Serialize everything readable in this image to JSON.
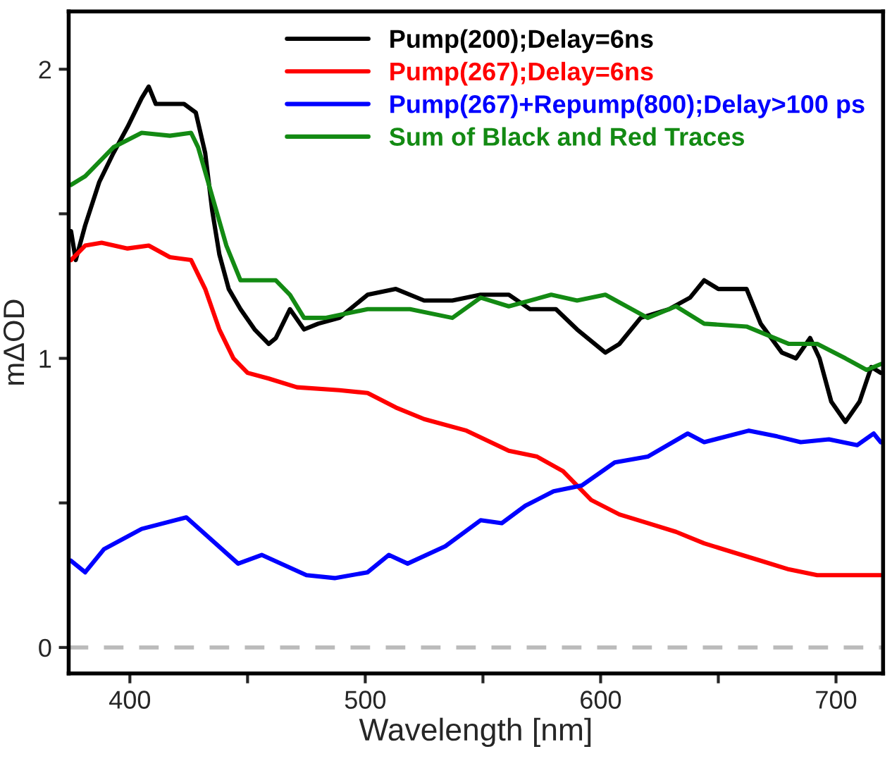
{
  "chart_data": {
    "type": "line",
    "xlabel": "Wavelength [nm]",
    "ylabel": "mΔOD",
    "xlim": [
      374,
      720
    ],
    "ylim": [
      -0.09,
      2.2
    ],
    "xticks": [
      400,
      {
        "value": 450,
        "label": null
      },
      500,
      {
        "value": 550,
        "label": null
      },
      600,
      {
        "value": 650,
        "label": null
      },
      700
    ],
    "yticks": [
      0,
      {
        "value": 0.5,
        "label": null
      },
      1,
      {
        "value": 1.5,
        "label": null
      },
      2
    ],
    "grid": false,
    "legend": "top right",
    "marker": "none",
    "line_style": "solid",
    "ref_lines": [
      {
        "axis": "y",
        "value": 0,
        "color": "#bbbbbb",
        "line_style": "dashed"
      }
    ],
    "series": [
      {
        "name": "Pump(200);Delay=6ns",
        "color": "#000000",
        "x": [
          375,
          377,
          381,
          387,
          393,
          399,
          405,
          408,
          411,
          417,
          423,
          428,
          432,
          435,
          438,
          442,
          447,
          453,
          459,
          462,
          468,
          474,
          480,
          489,
          501,
          513,
          525,
          537,
          549,
          561,
          570,
          581,
          590,
          602,
          608,
          617,
          629,
          638,
          644,
          650,
          656,
          662,
          668,
          677,
          683,
          689,
          693,
          698,
          704,
          710,
          715,
          719
        ],
        "values": [
          1.44,
          1.34,
          1.46,
          1.61,
          1.71,
          1.8,
          1.9,
          1.94,
          1.88,
          1.88,
          1.88,
          1.85,
          1.71,
          1.51,
          1.36,
          1.24,
          1.17,
          1.1,
          1.05,
          1.07,
          1.17,
          1.1,
          1.12,
          1.14,
          1.22,
          1.24,
          1.2,
          1.2,
          1.22,
          1.22,
          1.17,
          1.17,
          1.1,
          1.02,
          1.05,
          1.14,
          1.17,
          1.21,
          1.27,
          1.24,
          1.24,
          1.24,
          1.12,
          1.02,
          1.0,
          1.07,
          1.0,
          0.85,
          0.78,
          0.85,
          0.97,
          0.95
        ]
      },
      {
        "name": "Pump(267);Delay=6ns",
        "color": "#ff0000",
        "x": [
          375,
          381,
          388,
          399,
          408,
          417,
          426,
          432,
          438,
          444,
          450,
          459,
          471,
          489,
          501,
          513,
          525,
          543,
          561,
          573,
          584,
          596,
          608,
          620,
          632,
          644,
          656,
          668,
          680,
          692,
          704,
          719
        ],
        "values": [
          1.34,
          1.39,
          1.4,
          1.38,
          1.39,
          1.35,
          1.34,
          1.24,
          1.1,
          1.0,
          0.95,
          0.93,
          0.9,
          0.89,
          0.88,
          0.83,
          0.79,
          0.75,
          0.68,
          0.66,
          0.61,
          0.51,
          0.46,
          0.43,
          0.4,
          0.36,
          0.33,
          0.3,
          0.27,
          0.25,
          0.25,
          0.25
        ]
      },
      {
        "name": "Pump(267)+Repump(800);Delay>100 ps",
        "color": "#0000ff",
        "x": [
          375,
          381,
          389,
          405,
          424,
          446,
          456,
          475,
          487,
          501,
          510,
          518,
          534,
          549,
          558,
          568,
          580,
          592,
          606,
          620,
          637,
          644,
          663,
          675,
          685,
          697,
          709,
          716,
          719
        ],
        "values": [
          0.3,
          0.26,
          0.34,
          0.41,
          0.45,
          0.29,
          0.32,
          0.25,
          0.24,
          0.26,
          0.32,
          0.29,
          0.35,
          0.44,
          0.43,
          0.49,
          0.54,
          0.56,
          0.64,
          0.66,
          0.74,
          0.71,
          0.75,
          0.73,
          0.71,
          0.72,
          0.7,
          0.74,
          0.71
        ]
      },
      {
        "name": "Sum of Black and Red Traces",
        "color": "#138a13",
        "x": [
          375,
          381,
          387,
          393,
          405,
          417,
          426,
          429,
          435,
          441,
          447,
          453,
          462,
          468,
          474,
          483,
          501,
          519,
          537,
          549,
          561,
          579,
          590,
          602,
          620,
          632,
          644,
          662,
          680,
          692,
          704,
          713,
          719
        ],
        "values": [
          1.6,
          1.63,
          1.68,
          1.73,
          1.78,
          1.77,
          1.78,
          1.73,
          1.56,
          1.39,
          1.27,
          1.27,
          1.27,
          1.22,
          1.14,
          1.14,
          1.17,
          1.17,
          1.14,
          1.21,
          1.18,
          1.22,
          1.2,
          1.22,
          1.14,
          1.18,
          1.12,
          1.11,
          1.05,
          1.05,
          1.0,
          0.96,
          0.98
        ]
      }
    ]
  }
}
